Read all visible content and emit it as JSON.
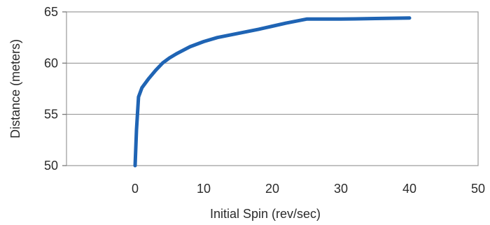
{
  "chart_data": {
    "type": "line",
    "title": "",
    "xlabel": "Initial Spin (rev/sec)",
    "ylabel": "Distance (meters)",
    "xlim": [
      -10,
      50
    ],
    "ylim": [
      50,
      65
    ],
    "x_ticks": [
      0,
      10,
      20,
      30,
      40,
      50
    ],
    "y_ticks": [
      50,
      55,
      60,
      65
    ],
    "grid": "horizontal",
    "legend": "none",
    "series": [
      {
        "color": "#1f64b4",
        "x": [
          0,
          0.2,
          0.5,
          1,
          2,
          3,
          4,
          5,
          6,
          8,
          10,
          12,
          15,
          18,
          20,
          22,
          25,
          26,
          30,
          35,
          40
        ],
        "y": [
          50,
          53.5,
          56.7,
          57.6,
          58.5,
          59.3,
          60.0,
          60.5,
          60.9,
          61.6,
          62.1,
          62.5,
          62.9,
          63.3,
          63.6,
          63.9,
          64.3,
          64.3,
          64.3,
          64.35,
          64.4
        ]
      }
    ]
  }
}
